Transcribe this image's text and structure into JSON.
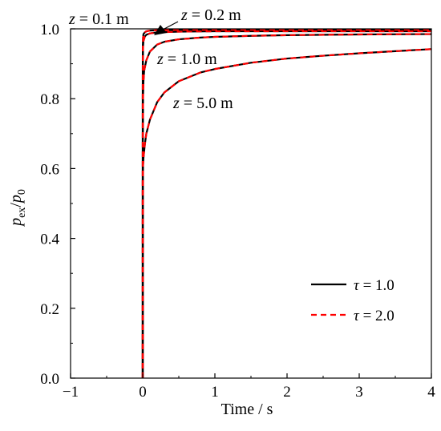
{
  "chart_data": {
    "type": "line",
    "xlabel": "Time / s",
    "ylabel": {
      "var": "p",
      "sub1": "ex",
      "slash": "/",
      "var2": "p",
      "sub2": "0"
    },
    "xlim": [
      -1,
      4
    ],
    "ylim": [
      0,
      1.0
    ],
    "x_ticks": [
      -1,
      0,
      1,
      2,
      3,
      4
    ],
    "x_tick_labels": [
      "−1",
      "0",
      "1",
      "2",
      "3",
      "4"
    ],
    "y_ticks": [
      0.0,
      0.2,
      0.4,
      0.6,
      0.8,
      1.0
    ],
    "y_tick_labels": [
      "0.0",
      "0.2",
      "0.4",
      "0.6",
      "0.8",
      "1.0"
    ],
    "grid": false,
    "legend_position": "bottom-right",
    "legend": [
      {
        "symbol": "τ",
        "text": " = 1.0",
        "color": "#000000",
        "dash": "solid"
      },
      {
        "symbol": "τ",
        "text": " = 2.0",
        "color": "#ff0000",
        "dash": "dashed"
      }
    ],
    "annotations": [
      {
        "var": "z",
        "text": " = 0.1 m"
      },
      {
        "var": "z",
        "text": " = 0.2 m"
      },
      {
        "var": "z",
        "text": " = 1.0 m"
      },
      {
        "var": "z",
        "text": " = 5.0 m"
      }
    ],
    "series": [
      {
        "x": [
          0,
          0.0001,
          0.001,
          0.005,
          0.01,
          0.03,
          0.05,
          0.1,
          0.2,
          0.5,
          1,
          2,
          3,
          4
        ],
        "y": [
          0,
          0.85,
          0.95,
          0.975,
          0.985,
          0.99,
          0.993,
          0.995,
          0.996,
          0.997,
          0.997,
          0.997,
          0.997,
          0.997
        ]
      },
      {
        "x": [
          0,
          0.0005,
          0.002,
          0.005,
          0.01,
          0.03,
          0.05,
          0.1,
          0.2,
          0.5,
          1,
          2,
          3,
          4
        ],
        "y": [
          0,
          0.8,
          0.91,
          0.95,
          0.965,
          0.978,
          0.983,
          0.987,
          0.99,
          0.992,
          0.993,
          0.993,
          0.993,
          0.993
        ]
      },
      {
        "x": [
          0,
          0.001,
          0.005,
          0.01,
          0.02,
          0.05,
          0.1,
          0.2,
          0.3,
          0.5,
          0.8,
          1,
          1.5,
          2,
          3,
          4
        ],
        "y": [
          0,
          0.68,
          0.81,
          0.85,
          0.88,
          0.91,
          0.935,
          0.955,
          0.963,
          0.97,
          0.975,
          0.977,
          0.98,
          0.982,
          0.984,
          0.985
        ]
      },
      {
        "x": [
          0,
          0.001,
          0.005,
          0.01,
          0.03,
          0.05,
          0.1,
          0.2,
          0.3,
          0.5,
          0.8,
          1.0,
          1.5,
          2.0,
          2.5,
          3.0,
          3.5,
          4.0
        ],
        "y": [
          0,
          0.58,
          0.61,
          0.63,
          0.67,
          0.7,
          0.74,
          0.79,
          0.818,
          0.85,
          0.875,
          0.885,
          0.903,
          0.915,
          0.923,
          0.93,
          0.936,
          0.942
        ]
      }
    ]
  }
}
